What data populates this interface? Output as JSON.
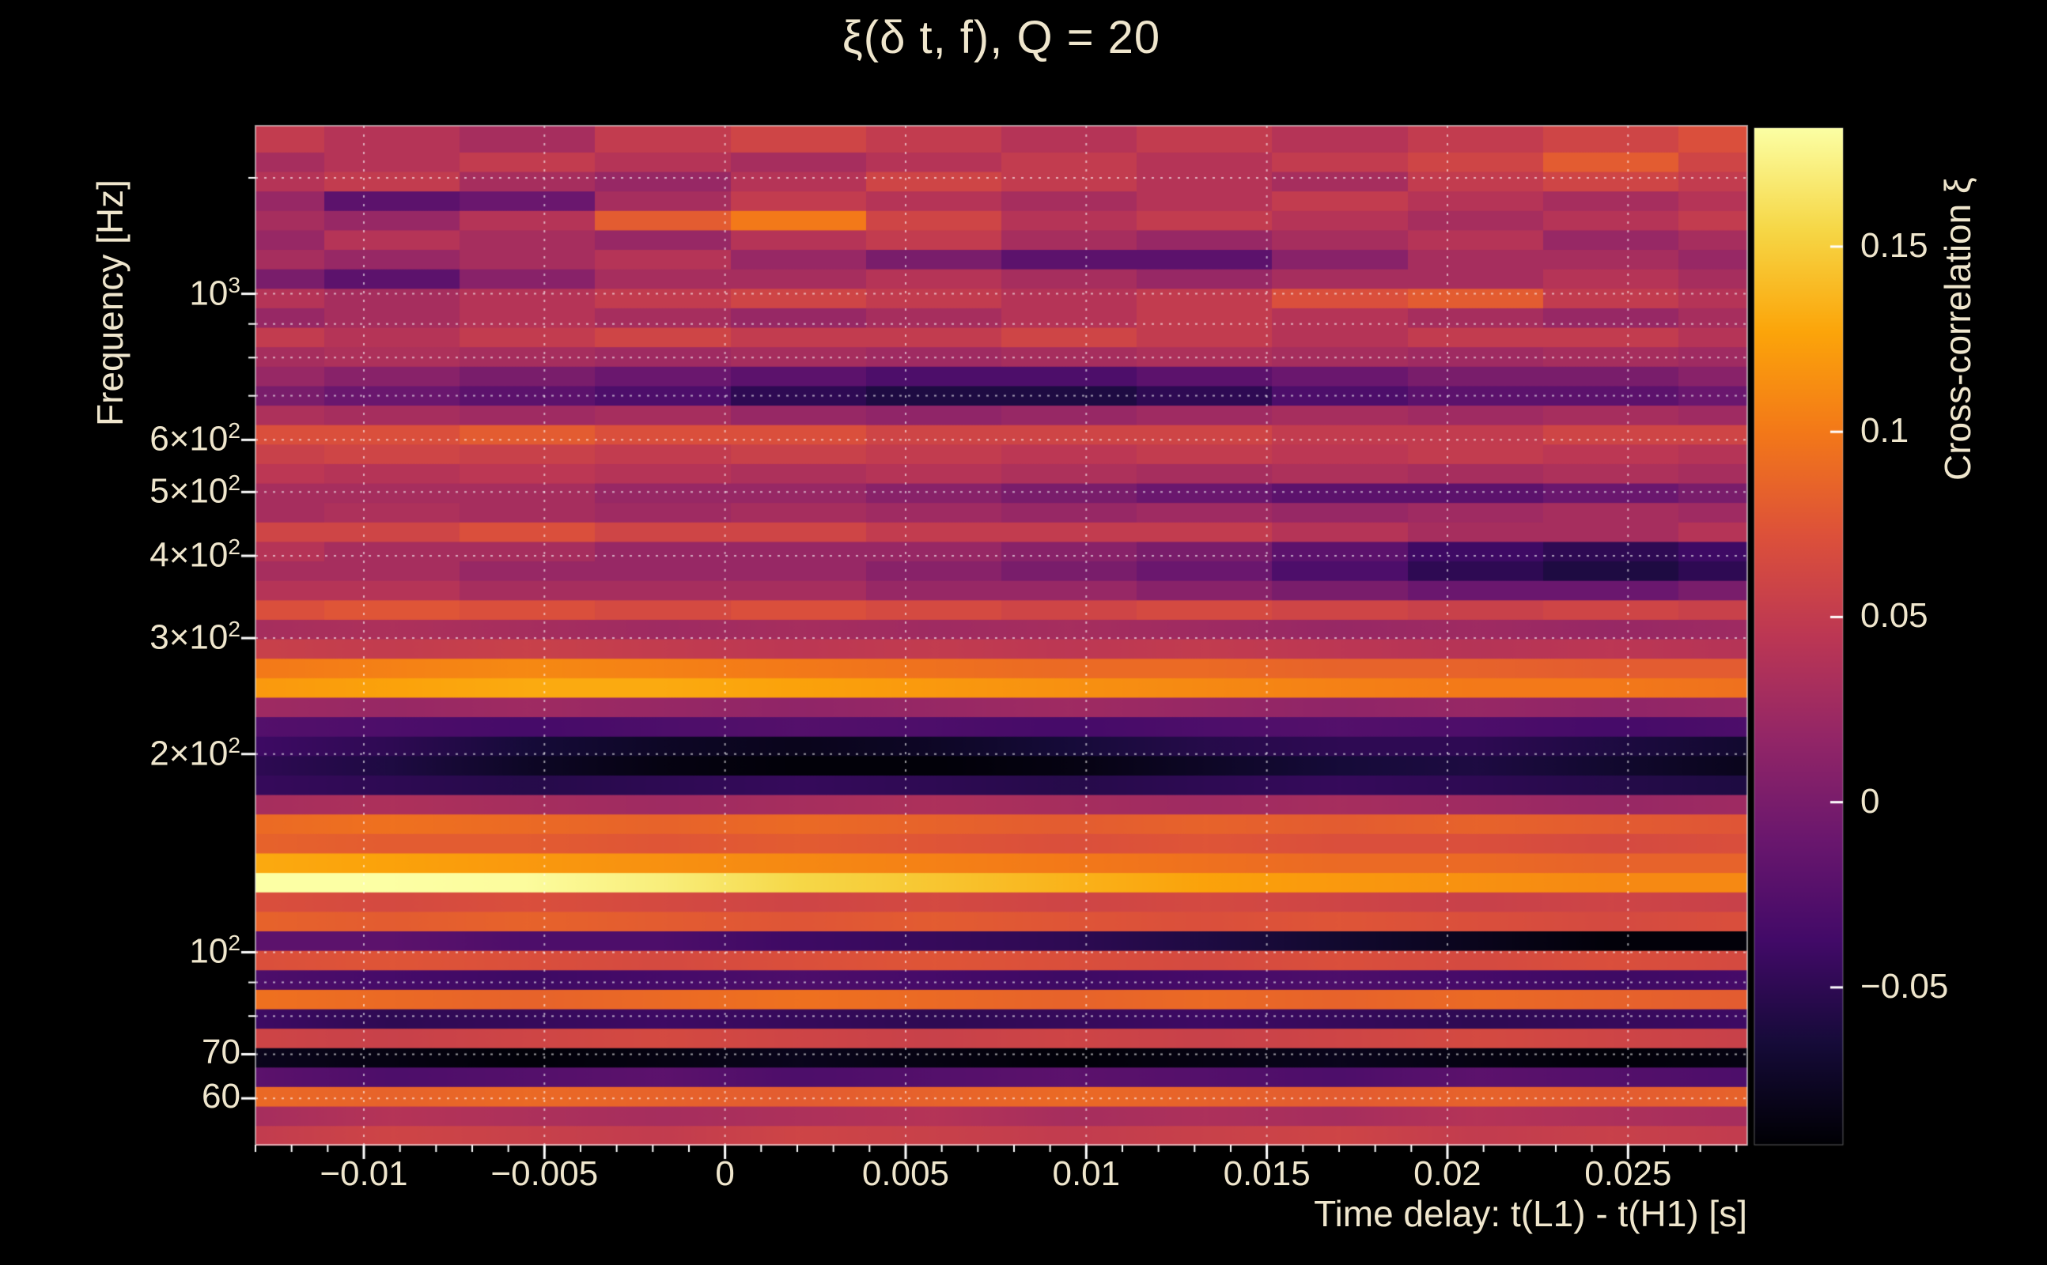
{
  "colors": {
    "background": "#000000",
    "text": "#efe6cd",
    "grid": "#ffffff"
  },
  "chart_data": {
    "type": "heatmap",
    "title": "ξ(δ t, f), Q = 20",
    "xlabel": "Time delay: t(L1) - t(H1) [s]",
    "ylabel": "Frequency [Hz]",
    "colorbar_label": "Cross-correlation ξ",
    "x_range": [
      -0.013,
      0.0283
    ],
    "y_range_hz": [
      51,
      1800
    ],
    "y_scale": "log",
    "value_range": [
      -0.0925,
      0.182
    ],
    "grid": "dotted",
    "x_ticks": [
      {
        "value": -0.01,
        "label": "−0.01"
      },
      {
        "value": -0.005,
        "label": "−0.005"
      },
      {
        "value": 0,
        "label": "0"
      },
      {
        "value": 0.005,
        "label": "0.005"
      },
      {
        "value": 0.01,
        "label": "0.01"
      },
      {
        "value": 0.015,
        "label": "0.015"
      },
      {
        "value": 0.02,
        "label": "0.02"
      },
      {
        "value": 0.025,
        "label": "0.025"
      }
    ],
    "x_minor_step": 0.001,
    "y_ticks": [
      {
        "hz": 1000,
        "base": "10",
        "exp": "3"
      },
      {
        "hz": 600,
        "base": "6×10",
        "exp": "2"
      },
      {
        "hz": 500,
        "base": "5×10",
        "exp": "2"
      },
      {
        "hz": 400,
        "base": "4×10",
        "exp": "2"
      },
      {
        "hz": 300,
        "base": "3×10",
        "exp": "2"
      },
      {
        "hz": 200,
        "base": "2×10",
        "exp": "2"
      },
      {
        "hz": 100,
        "base": "10",
        "exp": "2"
      },
      {
        "hz": 70,
        "base": "70",
        "exp": ""
      },
      {
        "hz": 60,
        "base": "60",
        "exp": ""
      }
    ],
    "grid_hz": [
      60,
      70,
      80,
      90,
      100,
      200,
      300,
      400,
      500,
      600,
      700,
      800,
      900,
      1000,
      1500
    ],
    "colorbar_ticks": [
      {
        "value": 0.15,
        "label": "0.15"
      },
      {
        "value": 0.1,
        "label": "0.1"
      },
      {
        "value": 0.05,
        "label": "0.05"
      },
      {
        "value": 0,
        "label": "0"
      },
      {
        "value": -0.05,
        "label": "−0.05"
      }
    ],
    "colormap": {
      "name": "inferno",
      "stops": [
        [
          0.0,
          "#000004"
        ],
        [
          0.1,
          "#160b39"
        ],
        [
          0.2,
          "#420a68"
        ],
        [
          0.3,
          "#6a176e"
        ],
        [
          0.4,
          "#932667"
        ],
        [
          0.5,
          "#bc3754"
        ],
        [
          0.6,
          "#dd513a"
        ],
        [
          0.7,
          "#f37819"
        ],
        [
          0.8,
          "#fca50a"
        ],
        [
          0.9,
          "#f6d746"
        ],
        [
          1.0,
          "#fcffa4"
        ]
      ]
    },
    "time_samples": [
      -0.013,
      -0.0092,
      -0.0055,
      -0.0017,
      0.002,
      0.0058,
      0.0095,
      0.0133,
      0.017,
      0.0208,
      0.0245,
      0.0283
    ],
    "blocky_above_hz": 330,
    "rows": [
      {
        "hz": 52.8,
        "values": [
          0.05,
          0.06,
          0.055,
          0.05,
          0.06,
          0.055,
          0.05,
          0.055,
          0.06,
          0.05,
          0.055,
          0.05
        ]
      },
      {
        "hz": 56.5,
        "values": [
          0.03,
          0.04,
          0.035,
          0.03,
          0.035,
          0.04,
          0.03,
          0.035,
          0.03,
          0.04,
          0.035,
          0.03
        ]
      },
      {
        "hz": 60.5,
        "values": [
          0.09,
          0.085,
          0.09,
          0.085,
          0.08,
          0.085,
          0.09,
          0.085,
          0.08,
          0.085,
          0.08,
          0.085
        ]
      },
      {
        "hz": 64.8,
        "values": [
          -0.02,
          -0.03,
          -0.025,
          -0.02,
          -0.03,
          -0.025,
          -0.02,
          -0.025,
          -0.03,
          -0.02,
          -0.025,
          -0.03
        ]
      },
      {
        "hz": 69.3,
        "values": [
          -0.08,
          -0.085,
          -0.09,
          -0.085,
          -0.08,
          -0.085,
          -0.09,
          -0.085,
          -0.08,
          -0.085,
          -0.09,
          -0.085
        ]
      },
      {
        "hz": 74.2,
        "values": [
          0.06,
          0.055,
          0.06,
          0.065,
          0.06,
          0.055,
          0.06,
          0.055,
          0.06,
          0.065,
          0.06,
          0.055
        ]
      },
      {
        "hz": 79.4,
        "values": [
          -0.04,
          -0.05,
          -0.045,
          -0.04,
          -0.045,
          -0.05,
          -0.045,
          -0.04,
          -0.045,
          -0.05,
          -0.045,
          -0.04
        ]
      },
      {
        "hz": 85.0,
        "values": [
          0.095,
          0.09,
          0.085,
          0.09,
          0.095,
          0.09,
          0.085,
          0.09,
          0.085,
          0.09,
          0.085,
          0.08
        ]
      },
      {
        "hz": 91.0,
        "values": [
          -0.03,
          -0.035,
          -0.04,
          -0.035,
          -0.03,
          -0.035,
          -0.04,
          -0.035,
          -0.03,
          -0.035,
          -0.04,
          -0.035
        ]
      },
      {
        "hz": 97.4,
        "values": [
          0.07,
          0.075,
          0.07,
          0.065,
          0.07,
          0.075,
          0.07,
          0.065,
          0.07,
          0.065,
          0.07,
          0.065
        ]
      },
      {
        "hz": 104.3,
        "values": [
          -0.02,
          -0.02,
          -0.03,
          -0.03,
          -0.04,
          -0.045,
          -0.05,
          -0.06,
          -0.07,
          -0.08,
          -0.09,
          -0.09
        ]
      },
      {
        "hz": 111.6,
        "values": [
          0.085,
          0.08,
          0.085,
          0.08,
          0.075,
          0.08,
          0.075,
          0.07,
          0.075,
          0.07,
          0.065,
          0.07
        ]
      },
      {
        "hz": 119.5,
        "values": [
          0.07,
          0.065,
          0.07,
          0.065,
          0.06,
          0.065,
          0.06,
          0.065,
          0.06,
          0.055,
          0.06,
          0.055
        ]
      },
      {
        "hz": 127.9,
        "values": [
          0.185,
          0.185,
          0.18,
          0.17,
          0.155,
          0.145,
          0.135,
          0.125,
          0.12,
          0.115,
          0.11,
          0.11
        ]
      },
      {
        "hz": 136.9,
        "values": [
          0.13,
          0.125,
          0.12,
          0.115,
          0.11,
          0.105,
          0.1,
          0.095,
          0.09,
          0.09,
          0.085,
          0.085
        ]
      },
      {
        "hz": 146.6,
        "values": [
          0.085,
          0.08,
          0.08,
          0.075,
          0.08,
          0.075,
          0.07,
          0.075,
          0.07,
          0.07,
          0.065,
          0.07
        ]
      },
      {
        "hz": 156.9,
        "values": [
          0.09,
          0.095,
          0.09,
          0.085,
          0.09,
          0.085,
          0.08,
          0.085,
          0.08,
          0.085,
          0.08,
          0.075
        ]
      },
      {
        "hz": 168.0,
        "values": [
          0.03,
          0.035,
          0.03,
          0.025,
          0.03,
          0.035,
          0.03,
          0.025,
          0.03,
          0.025,
          0.02,
          0.025
        ]
      },
      {
        "hz": 179.8,
        "values": [
          -0.045,
          -0.05,
          -0.055,
          -0.05,
          -0.045,
          -0.05,
          -0.055,
          -0.05,
          -0.045,
          -0.05,
          -0.055,
          -0.06
        ]
      },
      {
        "hz": 192.5,
        "values": [
          -0.05,
          -0.06,
          -0.075,
          -0.085,
          -0.09,
          -0.09,
          -0.085,
          -0.075,
          -0.065,
          -0.06,
          -0.07,
          -0.08
        ]
      },
      {
        "hz": 206.0,
        "values": [
          -0.04,
          -0.05,
          -0.065,
          -0.075,
          -0.08,
          -0.075,
          -0.065,
          -0.055,
          -0.05,
          -0.05,
          -0.06,
          -0.07
        ]
      },
      {
        "hz": 220.5,
        "values": [
          -0.025,
          -0.03,
          -0.035,
          -0.03,
          -0.025,
          -0.03,
          -0.035,
          -0.03,
          -0.025,
          -0.03,
          -0.035,
          -0.03
        ]
      },
      {
        "hz": 236.1,
        "values": [
          0.025,
          0.02,
          0.025,
          0.02,
          0.015,
          0.02,
          0.025,
          0.02,
          0.015,
          0.02,
          0.015,
          0.02
        ]
      },
      {
        "hz": 252.7,
        "values": [
          0.12,
          0.125,
          0.13,
          0.13,
          0.125,
          0.12,
          0.115,
          0.11,
          0.105,
          0.1,
          0.1,
          0.095
        ]
      },
      {
        "hz": 270.5,
        "values": [
          0.1,
          0.105,
          0.11,
          0.105,
          0.1,
          0.095,
          0.09,
          0.09,
          0.085,
          0.085,
          0.08,
          0.08
        ]
      },
      {
        "hz": 289.6,
        "values": [
          0.055,
          0.05,
          0.055,
          0.05,
          0.045,
          0.05,
          0.045,
          0.05,
          0.045,
          0.04,
          0.045,
          0.04
        ]
      },
      {
        "hz": 310.0,
        "values": [
          0.03,
          0.035,
          0.03,
          0.025,
          0.03,
          0.025,
          0.03,
          0.025,
          0.02,
          0.025,
          0.02,
          0.025
        ]
      },
      {
        "hz": 331.8,
        "values": [
          0.07,
          0.075,
          0.07,
          0.065,
          0.07,
          0.065,
          0.06,
          0.065,
          0.06,
          0.055,
          0.06,
          0.055
        ]
      },
      {
        "hz": 355.2,
        "values": [
          0.04,
          0.04,
          0.03,
          0.03,
          0.03,
          0.02,
          0.02,
          0.01,
          0.0,
          -0.01,
          -0.01,
          0.0
        ]
      },
      {
        "hz": 380.2,
        "values": [
          0.03,
          0.03,
          0.02,
          0.02,
          0.02,
          0.01,
          0.0,
          -0.01,
          -0.03,
          -0.05,
          -0.06,
          -0.05
        ]
      },
      {
        "hz": 407.0,
        "values": [
          0.04,
          0.03,
          0.03,
          0.02,
          0.02,
          0.02,
          0.01,
          0.0,
          -0.02,
          -0.04,
          -0.05,
          -0.04
        ]
      },
      {
        "hz": 435.7,
        "values": [
          0.06,
          0.06,
          0.07,
          0.06,
          0.06,
          0.05,
          0.05,
          0.05,
          0.04,
          0.03,
          0.03,
          0.04
        ]
      },
      {
        "hz": 466.4,
        "values": [
          0.03,
          0.035,
          0.03,
          0.025,
          0.03,
          0.025,
          0.02,
          0.025,
          0.02,
          0.025,
          0.03,
          0.025
        ]
      },
      {
        "hz": 499.3,
        "values": [
          0.03,
          0.03,
          0.03,
          0.02,
          0.02,
          0.01,
          0.0,
          -0.01,
          -0.02,
          -0.02,
          -0.01,
          0.0
        ]
      },
      {
        "hz": 534.4,
        "values": [
          0.045,
          0.04,
          0.045,
          0.04,
          0.035,
          0.04,
          0.035,
          0.03,
          0.035,
          0.03,
          0.035,
          0.03
        ]
      },
      {
        "hz": 572.1,
        "values": [
          0.055,
          0.06,
          0.055,
          0.05,
          0.055,
          0.05,
          0.045,
          0.05,
          0.045,
          0.05,
          0.045,
          0.04
        ]
      },
      {
        "hz": 612.4,
        "values": [
          0.07,
          0.07,
          0.08,
          0.07,
          0.07,
          0.06,
          0.06,
          0.06,
          0.05,
          0.05,
          0.06,
          0.06
        ]
      },
      {
        "hz": 655.5,
        "values": [
          0.035,
          0.03,
          0.025,
          0.03,
          0.02,
          0.015,
          0.02,
          0.025,
          0.03,
          0.025,
          0.03,
          0.025
        ]
      },
      {
        "hz": 701.7,
        "values": [
          0.0,
          -0.01,
          -0.02,
          -0.03,
          -0.05,
          -0.06,
          -0.06,
          -0.05,
          -0.03,
          -0.02,
          -0.02,
          -0.01
        ]
      },
      {
        "hz": 751.1,
        "values": [
          0.02,
          0.01,
          0.0,
          -0.01,
          -0.02,
          -0.03,
          -0.03,
          -0.02,
          -0.01,
          0.0,
          0.0,
          0.01
        ]
      },
      {
        "hz": 804.1,
        "values": [
          0.03,
          0.035,
          0.03,
          0.025,
          0.03,
          0.025,
          0.03,
          0.035,
          0.03,
          0.025,
          0.03,
          0.025
        ]
      },
      {
        "hz": 860.7,
        "values": [
          0.05,
          0.04,
          0.05,
          0.06,
          0.05,
          0.05,
          0.06,
          0.05,
          0.04,
          0.05,
          0.05,
          0.04
        ]
      },
      {
        "hz": 921.4,
        "values": [
          0.02,
          0.03,
          0.04,
          0.03,
          0.02,
          0.03,
          0.04,
          0.05,
          0.04,
          0.03,
          0.02,
          0.03
        ]
      },
      {
        "hz": 986.3,
        "values": [
          0.04,
          0.03,
          0.04,
          0.05,
          0.06,
          0.05,
          0.04,
          0.05,
          0.07,
          0.08,
          0.05,
          0.04
        ]
      },
      {
        "hz": 1055.8,
        "values": [
          0.0,
          -0.02,
          0.01,
          0.03,
          0.03,
          0.04,
          0.03,
          0.02,
          0.03,
          0.03,
          0.04,
          0.03
        ]
      },
      {
        "hz": 1130.2,
        "values": [
          0.03,
          0.02,
          0.03,
          0.04,
          0.02,
          0.0,
          -0.02,
          -0.02,
          0.01,
          0.03,
          0.03,
          0.02
        ]
      },
      {
        "hz": 1209.8,
        "values": [
          0.02,
          0.04,
          0.03,
          0.02,
          0.04,
          0.05,
          0.03,
          0.02,
          0.03,
          0.04,
          0.02,
          0.03
        ]
      },
      {
        "hz": 1295.1,
        "values": [
          0.03,
          0.02,
          0.04,
          0.08,
          0.1,
          0.06,
          0.04,
          0.05,
          0.04,
          0.03,
          0.04,
          0.05
        ]
      },
      {
        "hz": 1386.3,
        "values": [
          0.02,
          -0.02,
          -0.01,
          0.03,
          0.05,
          0.04,
          0.03,
          0.04,
          0.05,
          0.04,
          0.03,
          0.04
        ]
      },
      {
        "hz": 1484.0,
        "values": [
          0.04,
          0.05,
          0.03,
          0.02,
          0.04,
          0.06,
          0.05,
          0.04,
          0.03,
          0.05,
          0.06,
          0.05
        ]
      },
      {
        "hz": 1588.6,
        "values": [
          0.03,
          0.04,
          0.05,
          0.04,
          0.03,
          0.04,
          0.05,
          0.04,
          0.05,
          0.06,
          0.08,
          0.06
        ]
      },
      {
        "hz": 1700.5,
        "values": [
          0.05,
          0.04,
          0.03,
          0.05,
          0.06,
          0.05,
          0.04,
          0.05,
          0.04,
          0.05,
          0.06,
          0.07
        ]
      }
    ]
  }
}
